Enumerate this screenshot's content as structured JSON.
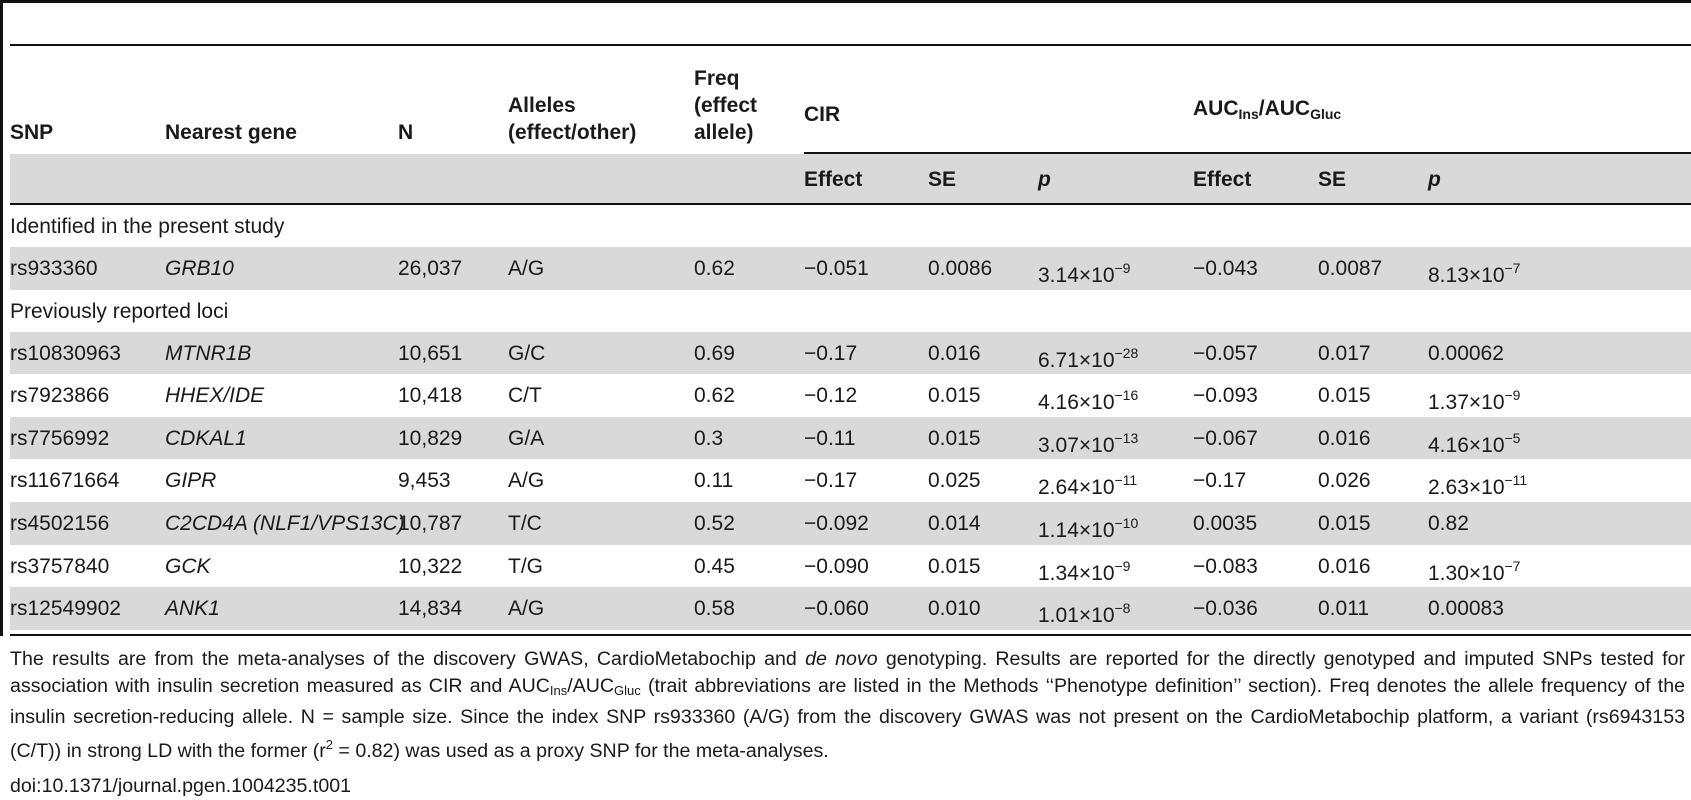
{
  "header": {
    "snp": "SNP",
    "nearest_gene": "Nearest gene",
    "n": "N",
    "alleles": [
      "Alleles",
      "(effect/other)"
    ],
    "freq": [
      "Freq",
      "(effect",
      "allele)"
    ],
    "cir": "CIR",
    "auc": {
      "a": "AUC",
      "a_sub": "Ins",
      "sep": "/AUC",
      "b_sub": "Gluc"
    },
    "effect": "Effect",
    "se": "SE",
    "p": "p"
  },
  "sections": [
    {
      "title": "Identified in the present study",
      "rows": [
        {
          "snp": "rs933360",
          "gene": "GRB10",
          "n": "26,037",
          "alleles": "A/G",
          "freq": "0.62",
          "cir_effect": "−0.051",
          "cir_se": "0.0086",
          "cir_p": "3.14×10",
          "cir_p_exp": "−9",
          "auc_effect": "−0.043",
          "auc_se": "0.0087",
          "auc_p": "8.13×10",
          "auc_p_exp": "−7"
        }
      ]
    },
    {
      "title": "Previously reported loci",
      "rows": [
        {
          "snp": "rs10830963",
          "gene": "MTNR1B",
          "n": "10,651",
          "alleles": "G/C",
          "freq": "0.69",
          "cir_effect": "−0.17",
          "cir_se": "0.016",
          "cir_p": "6.71×10",
          "cir_p_exp": "−28",
          "auc_effect": "−0.057",
          "auc_se": "0.017",
          "auc_p": "0.00062",
          "auc_p_exp": ""
        },
        {
          "snp": "rs7923866",
          "gene": "HHEX/IDE",
          "n": "10,418",
          "alleles": "C/T",
          "freq": "0.62",
          "cir_effect": "−0.12",
          "cir_se": "0.015",
          "cir_p": "4.16×10",
          "cir_p_exp": "−16",
          "auc_effect": "−0.093",
          "auc_se": "0.015",
          "auc_p": "1.37×10",
          "auc_p_exp": "−9"
        },
        {
          "snp": "rs7756992",
          "gene": "CDKAL1",
          "n": "10,829",
          "alleles": "G/A",
          "freq": "0.3",
          "cir_effect": "−0.11",
          "cir_se": "0.015",
          "cir_p": "3.07×10",
          "cir_p_exp": "−13",
          "auc_effect": "−0.067",
          "auc_se": "0.016",
          "auc_p": "4.16×10",
          "auc_p_exp": "−5"
        },
        {
          "snp": "rs11671664",
          "gene": "GIPR",
          "n": "9,453",
          "alleles": "A/G",
          "freq": "0.11",
          "cir_effect": "−0.17",
          "cir_se": "0.025",
          "cir_p": "2.64×10",
          "cir_p_exp": "−11",
          "auc_effect": "−0.17",
          "auc_se": "0.026",
          "auc_p": "2.63×10",
          "auc_p_exp": "−11"
        },
        {
          "snp": "rs4502156",
          "gene": "C2CD4A (NLF1/VPS13C)",
          "n": "10,787",
          "alleles": "T/C",
          "freq": "0.52",
          "cir_effect": "−0.092",
          "cir_se": "0.014",
          "cir_p": "1.14×10",
          "cir_p_exp": "−10",
          "auc_effect": "0.0035",
          "auc_se": "0.015",
          "auc_p": "0.82",
          "auc_p_exp": ""
        },
        {
          "snp": "rs3757840",
          "gene": "GCK",
          "n": "10,322",
          "alleles": "T/G",
          "freq": "0.45",
          "cir_effect": "−0.090",
          "cir_se": "0.015",
          "cir_p": "1.34×10",
          "cir_p_exp": "−9",
          "auc_effect": "−0.083",
          "auc_se": "0.016",
          "auc_p": "1.30×10",
          "auc_p_exp": "−7"
        },
        {
          "snp": "rs12549902",
          "gene": "ANK1",
          "n": "14,834",
          "alleles": "A/G",
          "freq": "0.58",
          "cir_effect": "−0.060",
          "cir_se": "0.010",
          "cir_p": "1.01×10",
          "cir_p_exp": "−8",
          "auc_effect": "−0.036",
          "auc_se": "0.011",
          "auc_p": "0.00083",
          "auc_p_exp": ""
        }
      ]
    }
  ],
  "footnote": {
    "t1": "The results are from the meta-analyses of the discovery GWAS, CardioMetabochip and ",
    "t1_it": "de novo",
    "t2": " genotyping. Results are reported for the directly genotyped and imputed SNPs tested for association with insulin secretion measured as CIR and AUC",
    "sub1": "Ins",
    "t3": "/AUC",
    "sub2": "Gluc",
    "t4": " (trait abbreviations are listed in the Methods ‘‘Phenotype definition’’ section). Freq denotes the allele frequency of the insulin secretion-reducing allele. N = sample size. Since the index SNP rs933360 (A/G) from the discovery GWAS was not present on the CardioMetabochip platform, a variant (rs6943153 (C/T)) in strong LD with the former (r",
    "sup": "2",
    "t5": " = 0.82) was used as a proxy SNP for the meta-analyses.",
    "doi": "doi:10.1371/journal.pgen.1004235.t001"
  }
}
